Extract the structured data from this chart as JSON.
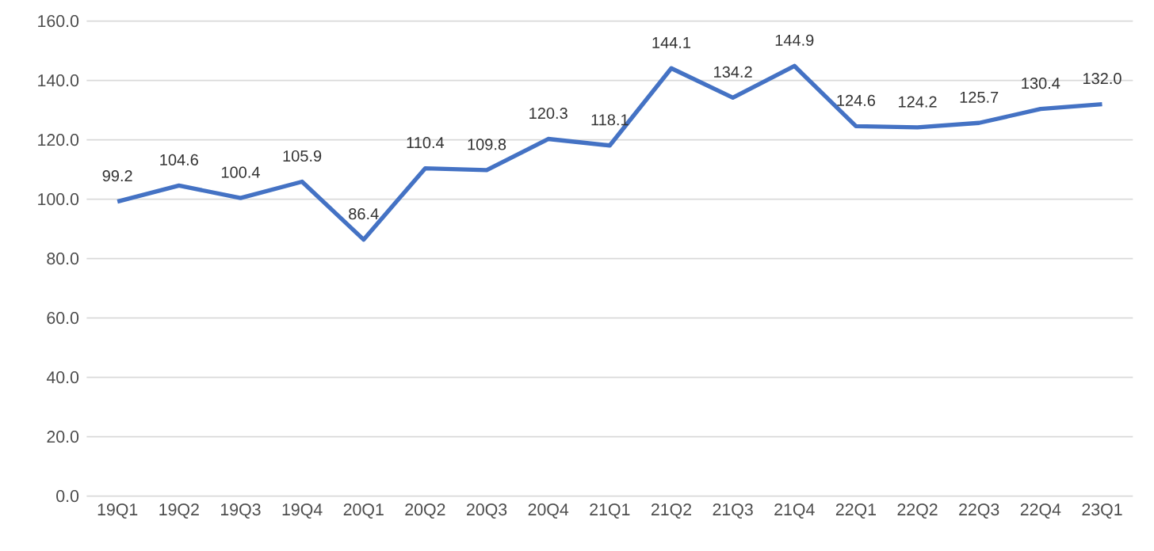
{
  "chart_data": {
    "type": "line",
    "categories": [
      "19Q1",
      "19Q2",
      "19Q3",
      "19Q4",
      "20Q1",
      "20Q2",
      "20Q3",
      "20Q4",
      "21Q1",
      "21Q2",
      "21Q3",
      "21Q4",
      "22Q1",
      "22Q2",
      "22Q3",
      "22Q4",
      "23Q1"
    ],
    "series": [
      {
        "color": "#4472c4",
        "values": [
          99.2,
          104.6,
          100.4,
          105.9,
          86.4,
          110.4,
          109.8,
          120.3,
          118.1,
          144.1,
          134.2,
          144.9,
          124.6,
          124.2,
          125.7,
          130.4,
          132.0
        ],
        "value_labels": [
          "99.2",
          "104.6",
          "100.4",
          "105.9",
          "86.4",
          "110.4",
          "109.8",
          "120.3",
          "118.1",
          "144.1",
          "134.2",
          "144.9",
          "124.6",
          "124.2",
          "125.7",
          "130.4",
          "132.0"
        ]
      }
    ],
    "ylim": [
      0,
      160
    ],
    "yticks": [
      {
        "value": 0,
        "label": "0.0"
      },
      {
        "value": 20,
        "label": "20.0"
      },
      {
        "value": 40,
        "label": "40.0"
      },
      {
        "value": 60,
        "label": "60.0"
      },
      {
        "value": 80,
        "label": "80.0"
      },
      {
        "value": 100,
        "label": "100.0"
      },
      {
        "value": 120,
        "label": "120.0"
      },
      {
        "value": 140,
        "label": "140.0"
      },
      {
        "value": 160,
        "label": "160.0"
      }
    ],
    "grid": "y",
    "marker": "none",
    "line_style": "solid"
  }
}
